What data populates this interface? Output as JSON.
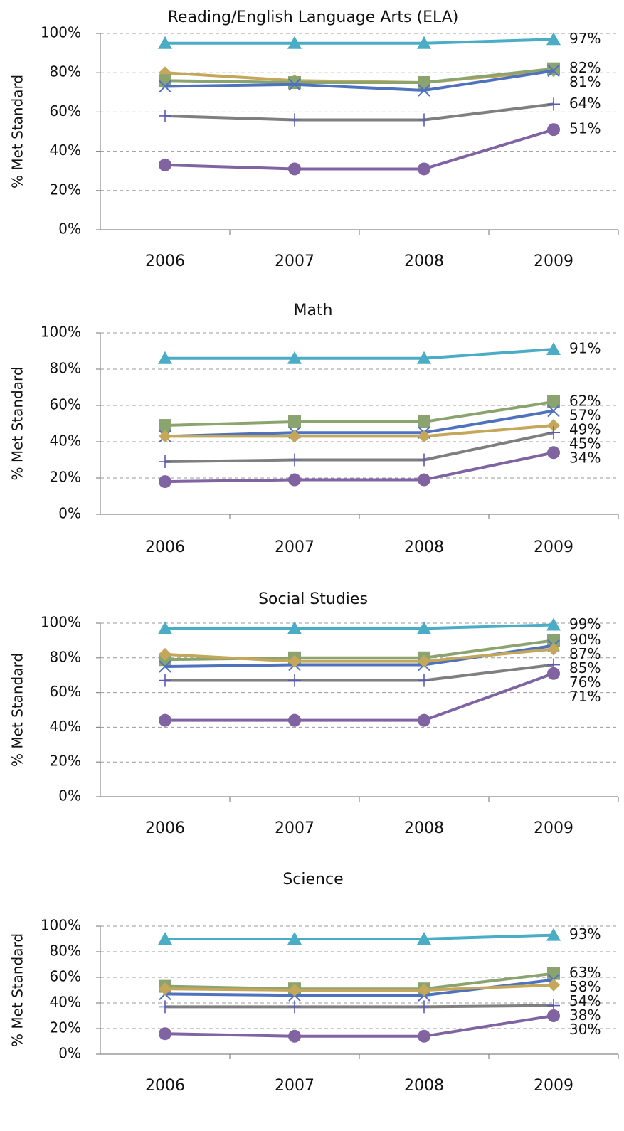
{
  "chart_data": [
    {
      "type": "line",
      "title": "Reading/English Language Arts (ELA)",
      "y_label": "% Met Standard",
      "categories": [
        "2006",
        "2007",
        "2008",
        "2009"
      ],
      "ylim": [
        0,
        100
      ],
      "yticks": [
        {
          "value": 0,
          "label": "0%"
        },
        {
          "value": 20,
          "label": "20%"
        },
        {
          "value": 40,
          "label": "40%"
        },
        {
          "value": 60,
          "label": "60%"
        },
        {
          "value": 80,
          "label": "80%"
        },
        {
          "value": 100,
          "label": "100%"
        }
      ],
      "grid": true,
      "series": [
        {
          "color": "#4BACC6",
          "marker": "triangle",
          "values": [
            95,
            95,
            95,
            97
          ],
          "value_labels": [
            null,
            null,
            null,
            "97%"
          ]
        },
        {
          "color": "#C4A75A",
          "marker": "diamond",
          "values": [
            80,
            76,
            75,
            81
          ],
          "value_labels": [
            null,
            null,
            null,
            null
          ]
        },
        {
          "color": "#8BA46F",
          "marker": "square",
          "values": [
            76,
            75,
            75,
            82
          ],
          "value_labels": [
            null,
            null,
            null,
            "82%"
          ]
        },
        {
          "color": "#4F72BE",
          "marker": "x",
          "values": [
            73,
            74,
            71,
            81
          ],
          "value_labels": [
            null,
            null,
            null,
            "81%"
          ]
        },
        {
          "color": "#7F7F7F",
          "marker": "plus",
          "values": [
            58,
            56,
            56,
            64
          ],
          "value_labels": [
            null,
            null,
            null,
            "64%"
          ]
        },
        {
          "color": "#8064A2",
          "marker": "circle",
          "values": [
            33,
            31,
            31,
            51
          ],
          "value_labels": [
            null,
            null,
            null,
            "51%"
          ]
        }
      ]
    },
    {
      "type": "line",
      "title": "Math",
      "y_label": "% Met Standard",
      "categories": [
        "2006",
        "2007",
        "2008",
        "2009"
      ],
      "ylim": [
        0,
        100
      ],
      "yticks": [
        {
          "value": 0,
          "label": "0%"
        },
        {
          "value": 20,
          "label": "20%"
        },
        {
          "value": 40,
          "label": "40%"
        },
        {
          "value": 60,
          "label": "60%"
        },
        {
          "value": 80,
          "label": "80%"
        },
        {
          "value": 100,
          "label": "100%"
        }
      ],
      "grid": true,
      "series": [
        {
          "color": "#4BACC6",
          "marker": "triangle",
          "values": [
            86,
            86,
            86,
            91
          ],
          "value_labels": [
            null,
            null,
            null,
            "91%"
          ]
        },
        {
          "color": "#8BA46F",
          "marker": "square",
          "values": [
            49,
            51,
            51,
            62
          ],
          "value_labels": [
            null,
            null,
            null,
            "62%"
          ]
        },
        {
          "color": "#4F72BE",
          "marker": "x",
          "values": [
            43,
            45,
            45,
            57
          ],
          "value_labels": [
            null,
            null,
            null,
            "57%"
          ]
        },
        {
          "color": "#C4A75A",
          "marker": "diamond",
          "values": [
            43,
            43,
            43,
            49
          ],
          "value_labels": [
            null,
            null,
            null,
            "49%"
          ]
        },
        {
          "color": "#7F7F7F",
          "marker": "plus",
          "values": [
            29,
            30,
            30,
            45
          ],
          "value_labels": [
            null,
            null,
            null,
            "45%"
          ]
        },
        {
          "color": "#8064A2",
          "marker": "circle",
          "values": [
            18,
            19,
            19,
            34
          ],
          "value_labels": [
            null,
            null,
            null,
            "34%"
          ]
        }
      ]
    },
    {
      "type": "line",
      "title": "Social Studies",
      "y_label": "% Met Standard",
      "categories": [
        "2006",
        "2007",
        "2008",
        "2009"
      ],
      "ylim": [
        0,
        100
      ],
      "yticks": [
        {
          "value": 0,
          "label": "0%"
        },
        {
          "value": 20,
          "label": "20%"
        },
        {
          "value": 40,
          "label": "40%"
        },
        {
          "value": 60,
          "label": "60%"
        },
        {
          "value": 80,
          "label": "80%"
        },
        {
          "value": 100,
          "label": "100%"
        }
      ],
      "grid": true,
      "series": [
        {
          "color": "#4BACC6",
          "marker": "triangle",
          "values": [
            97,
            97,
            97,
            99
          ],
          "value_labels": [
            null,
            null,
            null,
            "99%"
          ]
        },
        {
          "color": "#8BA46F",
          "marker": "square",
          "values": [
            79,
            80,
            80,
            90
          ],
          "value_labels": [
            null,
            null,
            null,
            "90%"
          ]
        },
        {
          "color": "#4F72BE",
          "marker": "x",
          "values": [
            75,
            76,
            76,
            87
          ],
          "value_labels": [
            null,
            null,
            null,
            "87%"
          ]
        },
        {
          "color": "#C4A75A",
          "marker": "diamond",
          "values": [
            82,
            78,
            78,
            85
          ],
          "value_labels": [
            null,
            null,
            null,
            "85%"
          ]
        },
        {
          "color": "#7F7F7F",
          "marker": "plus",
          "values": [
            67,
            67,
            67,
            76
          ],
          "value_labels": [
            null,
            null,
            null,
            "76%"
          ]
        },
        {
          "color": "#8064A2",
          "marker": "circle",
          "values": [
            44,
            44,
            44,
            71
          ],
          "value_labels": [
            null,
            null,
            null,
            "71%"
          ]
        }
      ]
    },
    {
      "type": "line",
      "title": "Science",
      "y_label": "% Met Standard",
      "categories": [
        "2006",
        "2007",
        "2008",
        "2009"
      ],
      "ylim": [
        0,
        100
      ],
      "yticks": [
        {
          "value": 0,
          "label": "0%"
        },
        {
          "value": 20,
          "label": "20%"
        },
        {
          "value": 40,
          "label": "40%"
        },
        {
          "value": 60,
          "label": "60%"
        },
        {
          "value": 80,
          "label": "80%"
        },
        {
          "value": 100,
          "label": "100%"
        }
      ],
      "grid": true,
      "series": [
        {
          "color": "#4BACC6",
          "marker": "triangle",
          "values": [
            90,
            90,
            90,
            93
          ],
          "value_labels": [
            null,
            null,
            null,
            "93%"
          ]
        },
        {
          "color": "#8BA46F",
          "marker": "square",
          "values": [
            53,
            51,
            51,
            63
          ],
          "value_labels": [
            null,
            null,
            null,
            "63%"
          ]
        },
        {
          "color": "#4F72BE",
          "marker": "x",
          "values": [
            47,
            46,
            46,
            58
          ],
          "value_labels": [
            null,
            null,
            null,
            "58%"
          ]
        },
        {
          "color": "#C4A75A",
          "marker": "diamond",
          "values": [
            51,
            50,
            50,
            54
          ],
          "value_labels": [
            null,
            null,
            null,
            "54%"
          ]
        },
        {
          "color": "#7F7F7F",
          "marker": "plus",
          "values": [
            37,
            37,
            37,
            38
          ],
          "value_labels": [
            null,
            null,
            null,
            "38%"
          ]
        },
        {
          "color": "#8064A2",
          "marker": "circle",
          "values": [
            16,
            14,
            14,
            30
          ],
          "value_labels": [
            null,
            null,
            null,
            "30%"
          ]
        }
      ]
    }
  ]
}
